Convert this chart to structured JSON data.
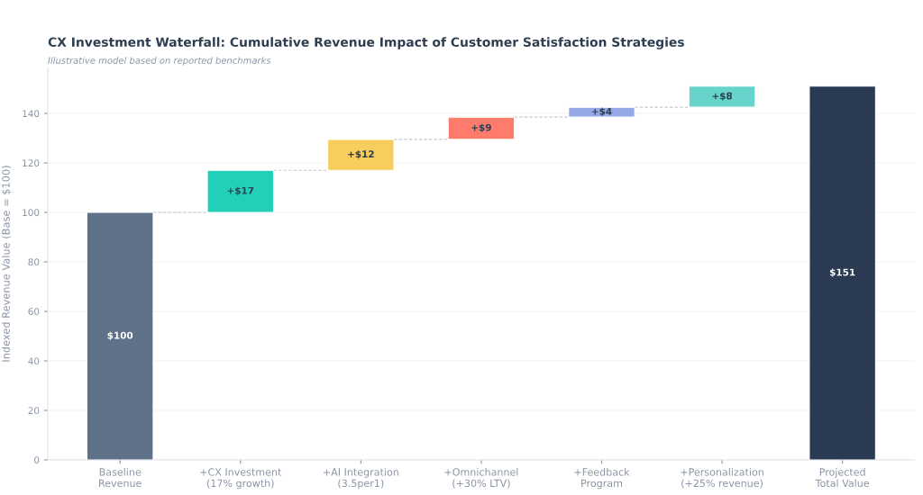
{
  "chart_data": {
    "type": "bar",
    "title": "CX Investment Waterfall: Cumulative Revenue Impact of Customer Satisfaction Strategies",
    "subtitle": "Illustrative model based on reported benchmarks",
    "ylabel": "Indexed Revenue Value (Base = $100)",
    "categories": [
      "Baseline\nRevenue",
      "+CX Investment\n(17% growth)",
      "+AI Integration\n(3.5per1)",
      "+Omnichannel\n(+30% LTV)",
      "+Feedback\nProgram",
      "+Personalization\n(+25% revenue)",
      "Projected\nTotal Value"
    ],
    "values": [
      100,
      17,
      12.5,
      9,
      4,
      8.5,
      151
    ],
    "base": [
      0,
      100,
      117,
      129.5,
      138.5,
      142.5,
      0
    ],
    "colors": [
      "#5f7089",
      "#22d0b9",
      "#f7cd5d",
      "#ff7b6b",
      "#97a8e8",
      "#66d4cb",
      "#2a3a52"
    ],
    "value_labels": [
      "$100",
      "+$17",
      "+$12",
      "+$9",
      "+$4",
      "+$8",
      "$151"
    ],
    "ylim": [
      0,
      158.55
    ],
    "yticks": [
      0,
      20,
      40,
      60,
      80,
      100,
      120,
      140
    ],
    "grid": "y"
  }
}
